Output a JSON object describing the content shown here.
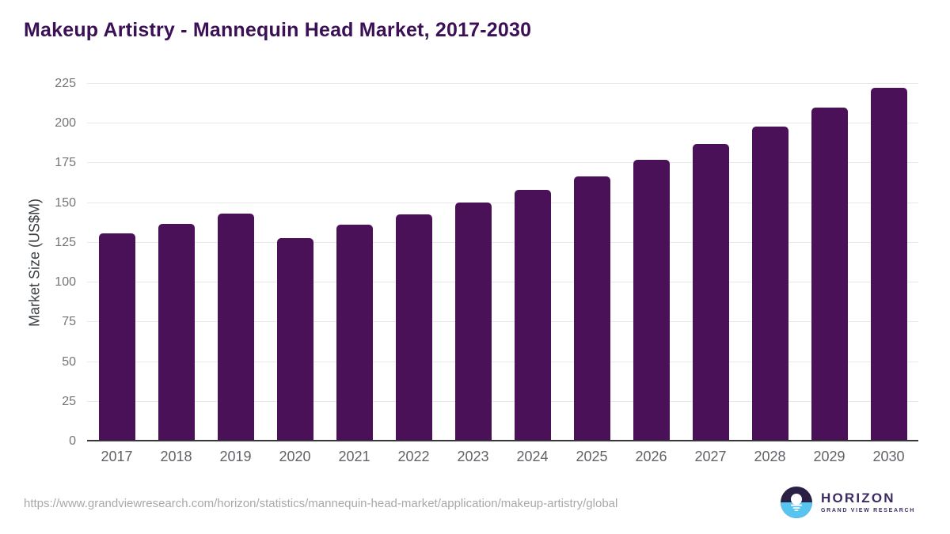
{
  "chart_data": {
    "type": "bar",
    "title": "Makeup Artistry - Mannequin Head Market, 2017-2030",
    "ylabel": "Market Size (US$M)",
    "xlabel": "",
    "categories": [
      "2017",
      "2018",
      "2019",
      "2020",
      "2021",
      "2022",
      "2023",
      "2024",
      "2025",
      "2026",
      "2027",
      "2028",
      "2029",
      "2030"
    ],
    "values": [
      131,
      137,
      143.5,
      128,
      136.5,
      143,
      150.5,
      158.5,
      167,
      177,
      187,
      198,
      210,
      222.5
    ],
    "ylim": [
      0,
      225
    ],
    "y_ticks": [
      0,
      25,
      50,
      75,
      100,
      125,
      150,
      175,
      200,
      225
    ],
    "grid": true,
    "legend": "none",
    "bar_color": "#4a1158"
  },
  "colors": {
    "title": "#3b1055",
    "bar": "#4a1158",
    "gridline": "#e8e8e8",
    "axis_line": "#37373b",
    "tick_label": "#757575",
    "x_label": "#5f6368",
    "source_text": "#a8a8a8",
    "logo_navy": "#2a1f45",
    "logo_blue": "#58c5f1",
    "logo_text": "#3d2b63"
  },
  "footer": {
    "source_url": "https://www.grandviewresearch.com/horizon/statistics/mannequin-head-market/application/makeup-artistry/global",
    "logo": {
      "title": "HORIZON",
      "subtitle": "GRAND VIEW RESEARCH",
      "icon": "horizon-sunset-circle-icon"
    }
  }
}
